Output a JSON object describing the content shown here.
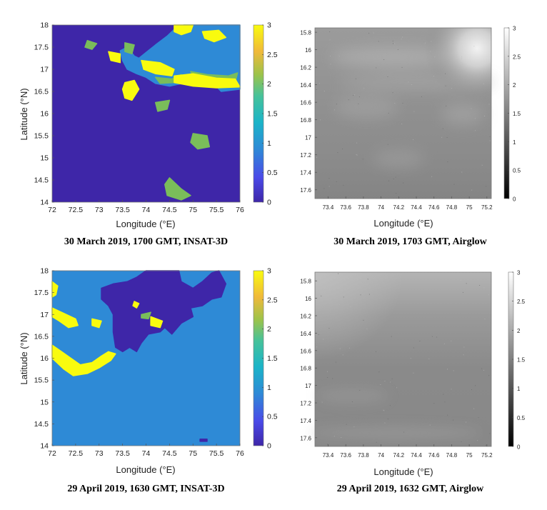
{
  "chart_data": [
    {
      "type": "heatmap",
      "caption": "30 March 2019, 1700 GMT, INSAT-3D",
      "xlabel": "Longitude (°E)",
      "ylabel": "Latitude (°N)",
      "xlim": [
        72,
        76
      ],
      "ylim": [
        14,
        18
      ],
      "xticks": [
        "72",
        "72.5",
        "73",
        "73.5",
        "74",
        "74.5",
        "75",
        "75.5",
        "76"
      ],
      "yticks": [
        "18",
        "17.5",
        "17",
        "16.5",
        "16",
        "15.5",
        "15",
        "14.5",
        "14"
      ],
      "colorbar": {
        "min": 0,
        "max": 3,
        "ticks": [
          "3",
          "2.5",
          "2",
          "1.5",
          "1",
          "0.5",
          "0"
        ],
        "colormap": "parula"
      },
      "background_value": 0,
      "regions": [
        {
          "value": 1,
          "polygon": [
            [
              75.1,
              18
            ],
            [
              76,
              18
            ],
            [
              76,
              16.55
            ],
            [
              75.6,
              16.5
            ],
            [
              75.4,
              16.72
            ],
            [
              75.2,
              16.78
            ],
            [
              74.85,
              16.7
            ],
            [
              74.5,
              16.62
            ],
            [
              74.2,
              16.68
            ],
            [
              74.0,
              16.82
            ],
            [
              73.8,
              16.9
            ],
            [
              73.6,
              17.0
            ],
            [
              73.5,
              17.2
            ],
            [
              73.45,
              17.42
            ],
            [
              73.6,
              17.5
            ],
            [
              73.75,
              17.3
            ],
            [
              73.85,
              17.25
            ],
            [
              74.0,
              17.38
            ],
            [
              74.2,
              17.55
            ],
            [
              74.45,
              17.75
            ],
            [
              74.6,
              17.9
            ],
            [
              74.8,
              18
            ]
          ]
        },
        {
          "value": 2,
          "polygon": [
            [
              74.95,
              16.95
            ],
            [
              75.3,
              16.88
            ],
            [
              75.75,
              16.85
            ],
            [
              75.95,
              16.92
            ],
            [
              75.9,
              16.7
            ],
            [
              75.4,
              16.65
            ],
            [
              75.05,
              16.72
            ]
          ]
        },
        {
          "value": 2,
          "polygon": [
            [
              74.2,
              16.82
            ],
            [
              74.55,
              16.78
            ],
            [
              74.75,
              16.88
            ],
            [
              74.6,
              16.7
            ],
            [
              74.3,
              16.68
            ]
          ]
        },
        {
          "value": 3,
          "polygon": [
            [
              74.6,
              18
            ],
            [
              75.0,
              18
            ],
            [
              74.95,
              17.85
            ],
            [
              74.75,
              17.78
            ],
            [
              74.6,
              17.85
            ]
          ]
        },
        {
          "value": 3,
          "polygon": [
            [
              75.2,
              17.85
            ],
            [
              75.55,
              17.88
            ],
            [
              75.7,
              17.72
            ],
            [
              75.45,
              17.62
            ],
            [
              75.25,
              17.7
            ]
          ]
        },
        {
          "value": 3,
          "polygon": [
            [
              73.9,
              17.2
            ],
            [
              74.3,
              17.15
            ],
            [
              74.6,
              17.0
            ],
            [
              74.55,
              16.85
            ],
            [
              74.2,
              16.9
            ],
            [
              73.95,
              17.0
            ]
          ]
        },
        {
          "value": 3,
          "polygon": [
            [
              73.55,
              16.7
            ],
            [
              73.75,
              16.75
            ],
            [
              73.85,
              16.55
            ],
            [
              73.7,
              16.3
            ],
            [
              73.55,
              16.35
            ],
            [
              73.5,
              16.55
            ]
          ]
        },
        {
          "value": 3,
          "polygon": [
            [
              74.6,
              16.85
            ],
            [
              75.0,
              16.9
            ],
            [
              75.5,
              16.8
            ],
            [
              75.9,
              16.78
            ],
            [
              76,
              16.6
            ],
            [
              75.5,
              16.58
            ],
            [
              75.0,
              16.62
            ],
            [
              74.6,
              16.7
            ]
          ]
        },
        {
          "value": 3,
          "polygon": [
            [
              73.2,
              17.4
            ],
            [
              73.45,
              17.35
            ],
            [
              73.45,
              17.15
            ],
            [
              73.25,
              17.2
            ]
          ]
        },
        {
          "value": 2,
          "polygon": [
            [
              72.75,
              17.65
            ],
            [
              72.95,
              17.58
            ],
            [
              72.85,
              17.45
            ],
            [
              72.7,
              17.5
            ]
          ]
        },
        {
          "value": 2,
          "polygon": [
            [
              73.55,
              17.6
            ],
            [
              73.75,
              17.55
            ],
            [
              73.7,
              17.35
            ],
            [
              73.55,
              17.4
            ]
          ]
        },
        {
          "value": 2,
          "polygon": [
            [
              74.2,
              16.25
            ],
            [
              74.5,
              16.3
            ],
            [
              74.45,
              16.1
            ],
            [
              74.25,
              16.05
            ]
          ]
        },
        {
          "value": 2,
          "polygon": [
            [
              75.0,
              15.55
            ],
            [
              75.3,
              15.5
            ],
            [
              75.35,
              15.25
            ],
            [
              75.1,
              15.2
            ],
            [
              74.95,
              15.35
            ]
          ]
        },
        {
          "value": 2,
          "polygon": [
            [
              74.5,
              14.55
            ],
            [
              74.75,
              14.3
            ],
            [
              74.95,
              14.15
            ],
            [
              74.75,
              14.05
            ],
            [
              74.45,
              14.15
            ],
            [
              74.4,
              14.4
            ]
          ]
        }
      ]
    },
    {
      "type": "heatmap",
      "caption": "30 March 2019, 1703 GMT, Airglow",
      "xlabel": "Longitude (°E)",
      "xlim": [
        73.25,
        75.25
      ],
      "xticks": [
        "73.4",
        "73.6",
        "73.8",
        "74",
        "74.2",
        "74.4",
        "74.6",
        "74.8",
        "75",
        "75.2"
      ],
      "ylim": [
        15.75,
        17.7
      ],
      "yticks": [
        "15.8",
        "16",
        "16.2",
        "16.4",
        "16.6",
        "16.8",
        "17",
        "17.2",
        "17.4",
        "17.6"
      ],
      "colorbar": {
        "min": 0,
        "max": 3,
        "ticks": [
          "3",
          "2.5",
          "2",
          "1.5",
          "1",
          "0.5",
          "0"
        ],
        "colormap": "gray"
      },
      "colors": {
        "base": "#8b8b8b",
        "bright": "#e6e6e6"
      }
    },
    {
      "type": "heatmap",
      "caption": "29 April 2019, 1630 GMT, INSAT-3D",
      "xlabel": "Longitude (°E)",
      "ylabel": "Latitude (°N)",
      "xlim": [
        72,
        76
      ],
      "ylim": [
        14,
        18
      ],
      "xticks": [
        "72",
        "72.5",
        "73",
        "73.5",
        "74",
        "74.5",
        "75",
        "75.5",
        "76"
      ],
      "yticks": [
        "18",
        "17.5",
        "17",
        "16.5",
        "16",
        "15.5",
        "15",
        "14.5",
        "14"
      ],
      "colorbar": {
        "min": 0,
        "max": 3,
        "ticks": [
          "3",
          "2.5",
          "2",
          "1.5",
          "1",
          "0.5",
          "0"
        ],
        "colormap": "parula"
      },
      "background_value": 1,
      "regions": [
        {
          "value": 0,
          "polygon": [
            [
              73.05,
              17.6
            ],
            [
              73.3,
              17.7
            ],
            [
              73.6,
              17.75
            ],
            [
              73.8,
              17.85
            ],
            [
              74.0,
              18
            ],
            [
              74.7,
              18
            ],
            [
              74.75,
              17.75
            ],
            [
              75.0,
              17.6
            ],
            [
              75.2,
              17.75
            ],
            [
              75.4,
              17.95
            ],
            [
              75.55,
              18
            ],
            [
              75.7,
              17.7
            ],
            [
              75.6,
              17.4
            ],
            [
              75.4,
              17.35
            ],
            [
              75.2,
              17.2
            ],
            [
              74.95,
              17.15
            ],
            [
              75.0,
              16.95
            ],
            [
              74.75,
              16.8
            ],
            [
              74.55,
              16.55
            ],
            [
              74.4,
              16.7
            ],
            [
              74.3,
              16.6
            ],
            [
              74.05,
              16.55
            ],
            [
              73.9,
              16.35
            ],
            [
              73.8,
              16.15
            ],
            [
              73.65,
              16.25
            ],
            [
              73.5,
              16.15
            ],
            [
              73.35,
              16.25
            ],
            [
              73.3,
              16.6
            ],
            [
              73.3,
              17.0
            ],
            [
              73.2,
              17.2
            ],
            [
              73.05,
              17.35
            ]
          ]
        },
        {
          "value": 0,
          "polygon": [
            [
              75.15,
              14.15
            ],
            [
              75.3,
              14.15
            ],
            [
              75.3,
              14.1
            ],
            [
              75.15,
              14.1
            ]
          ]
        },
        {
          "value": 3,
          "polygon": [
            [
              72,
              17.75
            ],
            [
              72.12,
              17.65
            ],
            [
              72.08,
              17.45
            ],
            [
              72,
              17.4
            ]
          ]
        },
        {
          "value": 3,
          "polygon": [
            [
              72,
              17.15
            ],
            [
              72.2,
              17.05
            ],
            [
              72.5,
              16.9
            ],
            [
              72.55,
              16.75
            ],
            [
              72.35,
              16.7
            ],
            [
              72.15,
              16.85
            ],
            [
              72,
              16.95
            ]
          ]
        },
        {
          "value": 3,
          "polygon": [
            [
              72.85,
              16.9
            ],
            [
              73.05,
              16.85
            ],
            [
              73.0,
              16.7
            ],
            [
              72.85,
              16.75
            ]
          ]
        },
        {
          "value": 3,
          "polygon": [
            [
              72,
              16.3
            ],
            [
              72.2,
              16.15
            ],
            [
              72.4,
              16.0
            ],
            [
              72.6,
              15.85
            ],
            [
              72.85,
              15.9
            ],
            [
              73.05,
              16.05
            ],
            [
              73.2,
              16.15
            ],
            [
              73.35,
              16.1
            ],
            [
              73.25,
              15.95
            ],
            [
              73.0,
              15.78
            ],
            [
              72.75,
              15.65
            ],
            [
              72.45,
              15.6
            ],
            [
              72.25,
              15.75
            ],
            [
              72.1,
              15.9
            ],
            [
              72,
              16.0
            ]
          ]
        },
        {
          "value": 3,
          "polygon": [
            [
              74.1,
              16.95
            ],
            [
              74.35,
              16.85
            ],
            [
              74.3,
              16.7
            ],
            [
              74.1,
              16.75
            ]
          ]
        },
        {
          "value": 3,
          "polygon": [
            [
              73.75,
              17.3
            ],
            [
              73.85,
              17.25
            ],
            [
              73.8,
              17.15
            ],
            [
              73.72,
              17.2
            ]
          ]
        },
        {
          "value": 2,
          "polygon": [
            [
              73.9,
              17.0
            ],
            [
              74.1,
              17.05
            ],
            [
              74.05,
              16.9
            ],
            [
              73.9,
              16.92
            ]
          ]
        }
      ]
    },
    {
      "type": "heatmap",
      "caption": "29 April 2019, 1632 GMT, Airglow",
      "xlabel": "Longitude (°E)",
      "xlim": [
        73.25,
        75.25
      ],
      "xticks": [
        "73.4",
        "73.6",
        "73.8",
        "74",
        "74.2",
        "74.4",
        "74.6",
        "74.8",
        "75",
        "75.2"
      ],
      "ylim": [
        15.7,
        17.7
      ],
      "yticks": [
        "15.8",
        "16",
        "16.2",
        "16.4",
        "16.6",
        "16.8",
        "17",
        "17.2",
        "17.4",
        "17.6"
      ],
      "colorbar": {
        "min": 0,
        "max": 3,
        "ticks": [
          "3",
          "2.5",
          "2",
          "1.5",
          "1",
          "0.5",
          "0"
        ],
        "colormap": "gray"
      },
      "colors": {
        "base": "#8a8a8a",
        "bright": "#b8b8b8"
      }
    }
  ]
}
